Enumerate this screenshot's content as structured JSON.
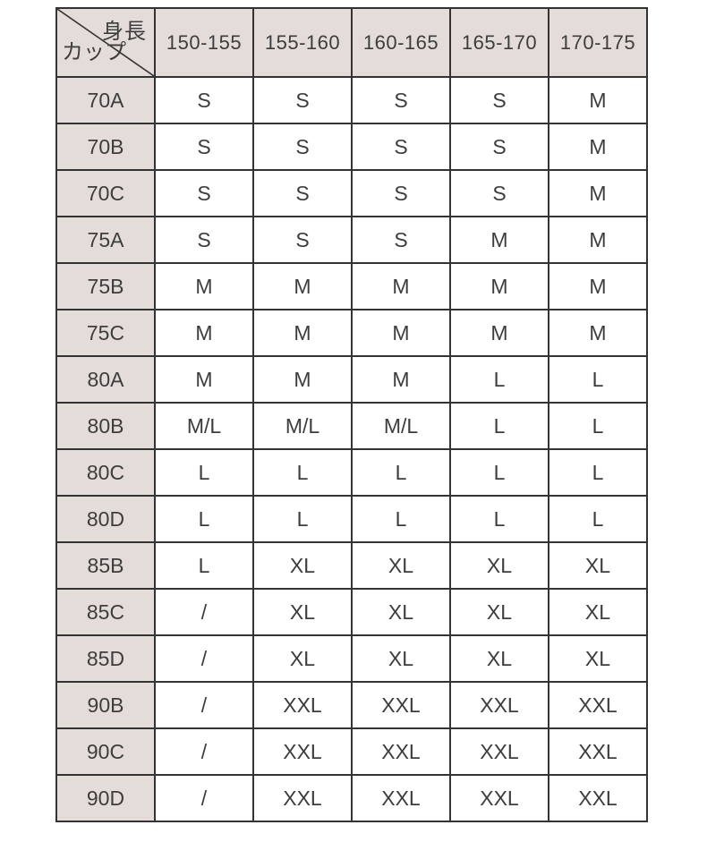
{
  "colors": {
    "header_background": "#e3dcd8",
    "cell_background": "#ffffff",
    "border": "#333333",
    "text": "#3d3d3d"
  },
  "chart_data": {
    "type": "table",
    "corner_labels": {
      "top_right": "身長",
      "bottom_left": "カップ"
    },
    "columns": [
      "150-155",
      "155-160",
      "160-165",
      "165-170",
      "170-175"
    ],
    "rows": [
      {
        "label": "70A",
        "values": [
          "S",
          "S",
          "S",
          "S",
          "M"
        ]
      },
      {
        "label": "70B",
        "values": [
          "S",
          "S",
          "S",
          "S",
          "M"
        ]
      },
      {
        "label": "70C",
        "values": [
          "S",
          "S",
          "S",
          "S",
          "M"
        ]
      },
      {
        "label": "75A",
        "values": [
          "S",
          "S",
          "S",
          "M",
          "M"
        ]
      },
      {
        "label": "75B",
        "values": [
          "M",
          "M",
          "M",
          "M",
          "M"
        ]
      },
      {
        "label": "75C",
        "values": [
          "M",
          "M",
          "M",
          "M",
          "M"
        ]
      },
      {
        "label": "80A",
        "values": [
          "M",
          "M",
          "M",
          "L",
          "L"
        ]
      },
      {
        "label": "80B",
        "values": [
          "M/L",
          "M/L",
          "M/L",
          "L",
          "L"
        ]
      },
      {
        "label": "80C",
        "values": [
          "L",
          "L",
          "L",
          "L",
          "L"
        ]
      },
      {
        "label": "80D",
        "values": [
          "L",
          "L",
          "L",
          "L",
          "L"
        ]
      },
      {
        "label": "85B",
        "values": [
          "L",
          "XL",
          "XL",
          "XL",
          "XL"
        ]
      },
      {
        "label": "85C",
        "values": [
          "/",
          "XL",
          "XL",
          "XL",
          "XL"
        ]
      },
      {
        "label": "85D",
        "values": [
          "/",
          "XL",
          "XL",
          "XL",
          "XL"
        ]
      },
      {
        "label": "90B",
        "values": [
          "/",
          "XXL",
          "XXL",
          "XXL",
          "XXL"
        ]
      },
      {
        "label": "90C",
        "values": [
          "/",
          "XXL",
          "XXL",
          "XXL",
          "XXL"
        ]
      },
      {
        "label": "90D",
        "values": [
          "/",
          "XXL",
          "XXL",
          "XXL",
          "XXL"
        ]
      }
    ]
  }
}
